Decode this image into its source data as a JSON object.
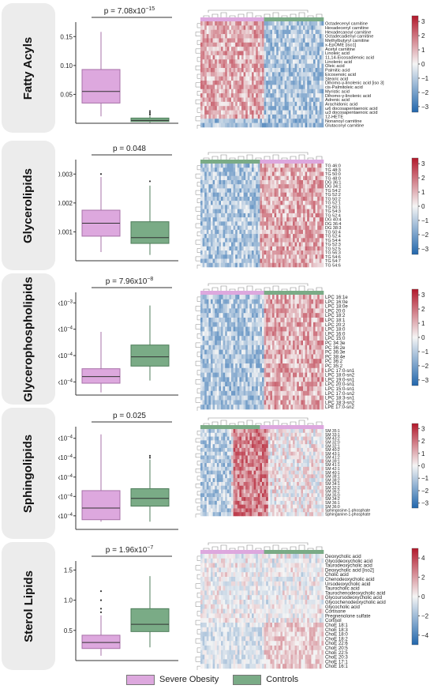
{
  "colors": {
    "severe": "#dda8de",
    "controls": "#7aab86",
    "severe_stroke": "#a770a8",
    "controls_stroke": "#4f7e5b"
  },
  "legend": {
    "severe": "Severe Obesity",
    "controls": "Controls"
  },
  "panels": [
    {
      "title": "Fatty Acyls",
      "ylabel": "mmol/L",
      "pvalue": "p = 7.08x10",
      "pexp": "−15",
      "ticks": [
        {
          "v": 0.05,
          "label": "0.05"
        },
        {
          "v": 0.1,
          "label": "0.10"
        },
        {
          "v": 0.15,
          "label": "0.15"
        }
      ],
      "ylim": [
        0.0,
        0.175
      ],
      "severe": {
        "min": 0.012,
        "q1": 0.035,
        "med": 0.055,
        "q3": 0.093,
        "max": 0.158,
        "out": []
      },
      "controls": {
        "min": 0.001,
        "q1": 0.003,
        "med": 0.005,
        "q3": 0.009,
        "max": 0.013,
        "out": [
          0.015,
          0.018,
          0.021
        ]
      },
      "hm_rows": [
        "Octadecenyl carnitine",
        "Hexadecenyl carnitine",
        "Hexadecanoyl carnitine",
        "Octadecadienyl carnitine",
        "Methylbutyryl carnitine",
        "x-EpOME [iso1]",
        "Acetyl carnitine",
        "Linoleic acid",
        "11,14-Eicosadienoic acid",
        "Linolenic acid",
        "Oleic acid",
        "Palmitic acid",
        "Eicosenoic acid",
        "Stearic acid",
        "Dihomo-γ-linolenic acid [iso 3]",
        "cis-Palmitoleic acid",
        "Myristic acid",
        "Dihomo-γ-linolenic acid",
        "Adrenic acid",
        "Arachidonic acid",
        "ω6 docosapentaenoic acid",
        "ω3 docosapentaenoic acid",
        "12-HETE",
        "Nonanoyl carnitine",
        "Glutaconyl carnitine"
      ],
      "cbar": [
        {
          "v": 3,
          "label": "3"
        },
        {
          "v": 2,
          "label": "2"
        },
        {
          "v": 1,
          "label": "1"
        },
        {
          "v": 0,
          "label": "0"
        },
        {
          "v": -1,
          "label": "−1"
        },
        {
          "v": -2,
          "label": "−2"
        },
        {
          "v": -3,
          "label": "−3"
        }
      ],
      "cmax": 3.4
    },
    {
      "title": "Glycerolipids",
      "ylabel": "mmol/L",
      "pvalue": "p = 0.048",
      "pexp": "",
      "ticks": [
        {
          "v": 0.001,
          "label": "0.001"
        },
        {
          "v": 0.002,
          "label": "0.002"
        },
        {
          "v": 0.003,
          "label": "0.003"
        }
      ],
      "ylim": [
        0.0,
        0.0035
      ],
      "severe": {
        "min": 0.0003,
        "q1": 0.00085,
        "med": 0.0013,
        "q3": 0.00175,
        "max": 0.0029,
        "out": [
          0.003
        ]
      },
      "controls": {
        "min": 0.0002,
        "q1": 0.0006,
        "med": 0.0008,
        "q3": 0.00135,
        "max": 0.0026,
        "out": [
          0.00275
        ]
      },
      "hm_rows": [
        "TG 46:0",
        "TG 48:3",
        "TG 50:0",
        "TG 48:0",
        "DG 36:1",
        "DG 34:1",
        "TG 54:2",
        "TG 52:2",
        "TG 50:2",
        "TG 52:1",
        "TG 50:1",
        "TG 54:3",
        "TG 52:4",
        "DG 40:4",
        "DG 36:4",
        "DG 38:3",
        "TG 50:4",
        "TG 52:4",
        "TG 54:4",
        "TG 52:3",
        "TG 52:5",
        "TG 56:3",
        "TG 54:6",
        "TG 54:7",
        "TG 54:6"
      ],
      "cbar": [
        {
          "v": 3,
          "label": "3"
        },
        {
          "v": 2,
          "label": "2"
        },
        {
          "v": 1,
          "label": "1"
        },
        {
          "v": 0,
          "label": "0"
        },
        {
          "v": -1,
          "label": "−1"
        },
        {
          "v": -2,
          "label": "−2"
        },
        {
          "v": -3,
          "label": "−3"
        }
      ],
      "cmax": 3.4
    },
    {
      "title": "Glycerophospholipids",
      "ylabel": "mmol/L",
      "pvalue": "p = 7.96x10",
      "pexp": "−8",
      "ticks": [
        {
          "v": 0.0004,
          "label": "4x10",
          "exp": "−4"
        },
        {
          "v": 0.0006,
          "label": "6x10",
          "exp": "−4"
        },
        {
          "v": 0.0008,
          "label": "8x10",
          "exp": "−4"
        },
        {
          "v": 0.001,
          "label": "1x10",
          "exp": "−3"
        }
      ],
      "ylim": [
        0.0003,
        0.00108
      ],
      "severe": {
        "min": 0.00032,
        "q1": 0.00039,
        "med": 0.00044,
        "q3": 0.0005,
        "max": 0.00078,
        "out": []
      },
      "controls": {
        "min": 0.00041,
        "q1": 0.00052,
        "med": 0.00059,
        "q3": 0.00068,
        "max": 0.00098,
        "out": []
      },
      "hm_rows": [
        "LPC 16:1e",
        "LPC 16:0e",
        "LPC 18:0e",
        "LPC 20:0",
        "LPC 18:2",
        "LPC 18:1",
        "LPC 20:2",
        "LPC 18:0",
        "LPC 16:0",
        "LPC 15:0",
        "PC 34:3e",
        "PC 36:2e",
        "PC 36:3e",
        "PC 38:4e",
        "PC 36:2",
        "PC 35:2",
        "LPC 17:0-sn1",
        "LPC 18:0-sn2",
        "LPC 19:0-sn1",
        "LPC 20:0-sn1",
        "LPC 15:0-sn1",
        "LPC 17:0-sn2",
        "LPC 18:3-sn1",
        "LPC 18:3-sn2",
        "LPE 17:0-sn2"
      ],
      "cbar": [
        {
          "v": 3,
          "label": "3"
        },
        {
          "v": 2,
          "label": "2"
        },
        {
          "v": 1,
          "label": "1"
        },
        {
          "v": 0,
          "label": "0"
        },
        {
          "v": -1,
          "label": "−1"
        },
        {
          "v": -2,
          "label": "−2"
        },
        {
          "v": -3,
          "label": "−3"
        }
      ],
      "cmax": 3.4
    },
    {
      "title": "Sphingolipids",
      "ylabel": "mmol/L",
      "pvalue": "p = 0.025",
      "pexp": "",
      "ticks": [
        {
          "v": 0.0004,
          "label": "4x10",
          "exp": "−4"
        },
        {
          "v": 0.0005,
          "label": "5x10",
          "exp": "−4"
        },
        {
          "v": 0.0006,
          "label": "6x10",
          "exp": "−4"
        },
        {
          "v": 0.0007,
          "label": "7x10",
          "exp": "−4"
        },
        {
          "v": 0.0008,
          "label": "8x10",
          "exp": "−4"
        }
      ],
      "ylim": [
        0.00033,
        0.00086
      ],
      "severe": {
        "min": 0.00037,
        "q1": 0.00038,
        "med": 0.00044,
        "q3": 0.00053,
        "max": 0.00082,
        "out": []
      },
      "controls": {
        "min": 0.00037,
        "q1": 0.00045,
        "med": 0.00049,
        "q3": 0.00054,
        "max": 0.00069,
        "out": [
          0.0007,
          0.00071
        ]
      },
      "hm_rows": [
        "SM 35:1",
        "SM 33:1",
        "SM 43:2",
        "SM 32:0",
        "SM 32:1",
        "SM 40:2",
        "SM 43:1",
        "SM 41:2",
        "SM 39:1",
        "SM 41:1",
        "SM 42:1",
        "SM 40:1",
        "SM 38:1",
        "SM 38:2",
        "SM 34:1",
        "SM 32:2",
        "SM 36:2",
        "SM 35:0",
        "SM 34:2",
        "SM 36:1",
        "SM 36:0",
        "Sphingosine-1-phosphate",
        "Sphinganine-1-phosphate"
      ],
      "cbar": [
        {
          "v": 3,
          "label": "3"
        },
        {
          "v": 2,
          "label": "2"
        },
        {
          "v": 1,
          "label": "1"
        },
        {
          "v": 0,
          "label": "0"
        },
        {
          "v": -1,
          "label": "−1"
        },
        {
          "v": -2,
          "label": "−2"
        },
        {
          "v": -3,
          "label": "−3"
        }
      ],
      "cmax": 3.4
    },
    {
      "title": "Sterol Lipids",
      "ylabel": "mmol/L",
      "pvalue": "p = 1.96x10",
      "pexp": "−7",
      "ticks": [
        {
          "v": 0.5,
          "label": "0.5"
        },
        {
          "v": 1.0,
          "label": "1.0"
        },
        {
          "v": 1.5,
          "label": "1.5"
        }
      ],
      "ylim": [
        0.0,
        1.65
      ],
      "severe": {
        "min": 0.08,
        "q1": 0.2,
        "med": 0.3,
        "q3": 0.42,
        "max": 0.75,
        "out": [
          0.8,
          0.86,
          1.0,
          1.15
        ]
      },
      "controls": {
        "min": 0.22,
        "q1": 0.48,
        "med": 0.6,
        "q3": 0.86,
        "max": 1.4,
        "out": []
      },
      "hm_rows": [
        "Deoxycholic acid",
        "Glycodeoxycholic acid",
        "Taurodeoxycholic acid",
        "Deoxycholic acid [iso2]",
        "Cholic acid",
        "Chenodeoxycholic acid",
        "Ursodeoxycholic acid",
        "Taurocholic acid",
        "Taurochenodeoxycholic acid",
        "Glycoursodeoxycholic acid",
        "Glycochenodeoxycholic acid",
        "Glycocholic acid",
        "Cortisone",
        "Pregnenolone sulfate",
        "Cortisol",
        "ChoE 18:1",
        "ChoE 18:3",
        "ChoE 18:0",
        "ChoE 18:2",
        "ChoE 22:6",
        "ChoE 20:5",
        "ChoE 22:5",
        "ChoE 20:3",
        "ChoE 17:1",
        "ChoE 16:1"
      ],
      "cbar": [
        {
          "v": 4,
          "label": "4"
        },
        {
          "v": 2,
          "label": "2"
        },
        {
          "v": 0,
          "label": "0"
        },
        {
          "v": -2,
          "label": "−2"
        },
        {
          "v": -4,
          "label": "−4"
        }
      ],
      "cmax": 5
    }
  ]
}
